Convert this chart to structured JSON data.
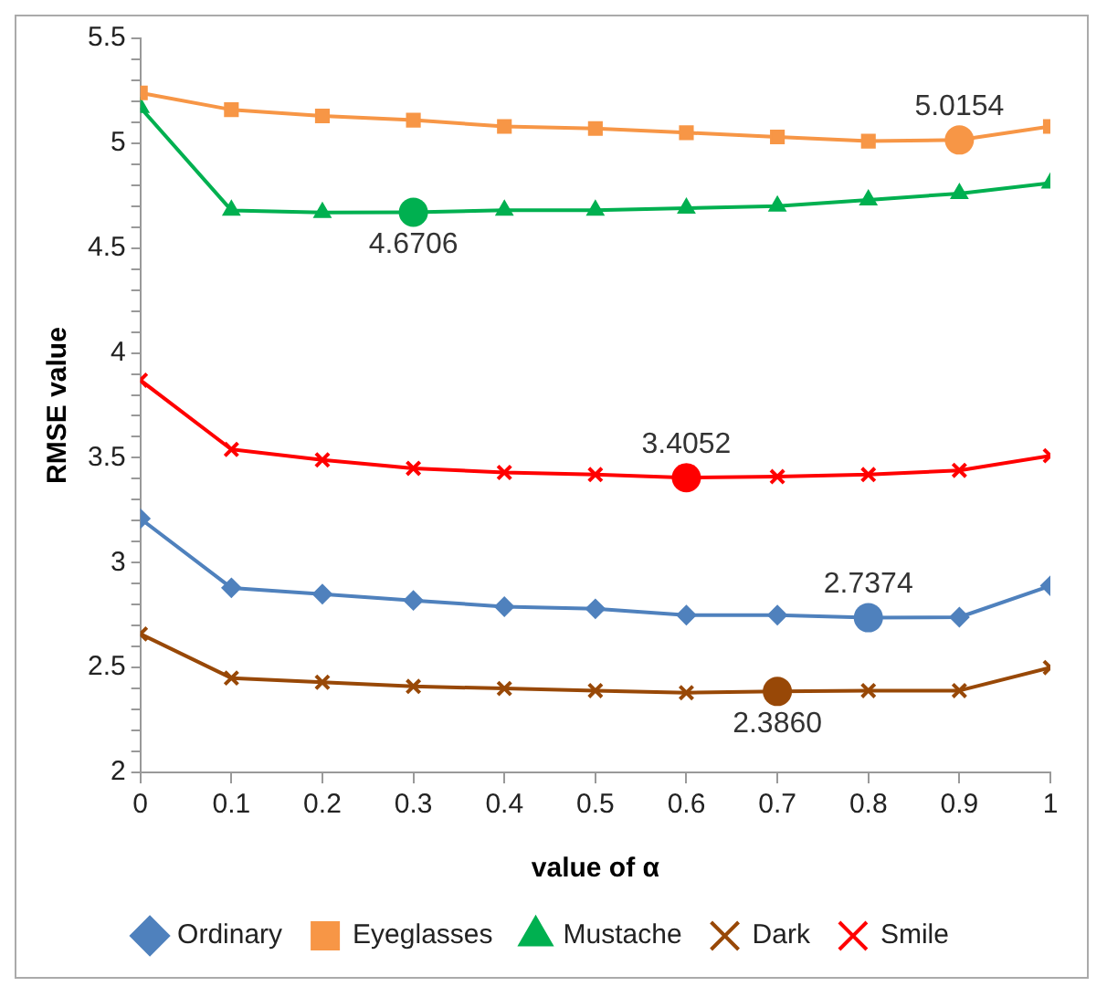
{
  "chart_data": {
    "type": "line",
    "xlabel": "value of α",
    "ylabel": "RMSE value",
    "x": [
      0,
      0.1,
      0.2,
      0.3,
      0.4,
      0.5,
      0.6,
      0.7,
      0.8,
      0.9,
      1
    ],
    "xlim": [
      0,
      1
    ],
    "xticks": [
      0,
      0.1,
      0.2,
      0.3,
      0.4,
      0.5,
      0.6,
      0.7,
      0.8,
      0.9,
      1
    ],
    "ylim": [
      2,
      5.5
    ],
    "yticks": [
      2,
      {
        "value": 2.1,
        "label": null
      },
      {
        "value": 2.2,
        "label": null
      },
      {
        "value": 2.3,
        "label": null
      },
      {
        "value": 2.4,
        "label": null
      },
      2.5,
      {
        "value": 2.6,
        "label": null
      },
      {
        "value": 2.7,
        "label": null
      },
      {
        "value": 2.8,
        "label": null
      },
      {
        "value": 2.9,
        "label": null
      },
      3,
      {
        "value": 3.1,
        "label": null
      },
      {
        "value": 3.2,
        "label": null
      },
      {
        "value": 3.3,
        "label": null
      },
      {
        "value": 3.4,
        "label": null
      },
      3.5,
      {
        "value": 3.6,
        "label": null
      },
      {
        "value": 3.7,
        "label": null
      },
      {
        "value": 3.8,
        "label": null
      },
      {
        "value": 3.9,
        "label": null
      },
      4,
      {
        "value": 4.1,
        "label": null
      },
      {
        "value": 4.2,
        "label": null
      },
      {
        "value": 4.3,
        "label": null
      },
      {
        "value": 4.4,
        "label": null
      },
      4.5,
      {
        "value": 4.6,
        "label": null
      },
      {
        "value": 4.7,
        "label": null
      },
      {
        "value": 4.8,
        "label": null
      },
      {
        "value": 4.9,
        "label": null
      },
      5,
      {
        "value": 5.1,
        "label": null
      },
      {
        "value": 5.2,
        "label": null
      },
      {
        "value": 5.3,
        "label": null
      },
      {
        "value": 5.4,
        "label": null
      },
      5.5
    ],
    "grid": false,
    "legend": "bottom",
    "line_style": "solid",
    "series": [
      {
        "name": "Ordinary",
        "color": "#4f81bd",
        "marker": "diamond",
        "values": [
          3.21,
          2.88,
          2.85,
          2.82,
          2.79,
          2.78,
          2.75,
          2.75,
          2.7374,
          2.74,
          2.89
        ]
      },
      {
        "name": "Eyeglasses",
        "color": "#f79646",
        "marker": "square",
        "values": [
          5.24,
          5.16,
          5.13,
          5.11,
          5.08,
          5.07,
          5.05,
          5.03,
          5.01,
          5.0154,
          5.08
        ]
      },
      {
        "name": "Mustache",
        "color": "#00b050",
        "marker": "triangle",
        "values": [
          5.17,
          4.68,
          4.67,
          4.6706,
          4.68,
          4.68,
          4.69,
          4.7,
          4.73,
          4.76,
          4.81
        ]
      },
      {
        "name": "Dark",
        "color": "#984807",
        "marker": "cross",
        "values": [
          2.66,
          2.45,
          2.43,
          2.41,
          2.4,
          2.39,
          2.38,
          2.386,
          2.39,
          2.39,
          2.5
        ]
      },
      {
        "name": "Smile",
        "color": "#ff0000",
        "marker": "cross",
        "values": [
          3.87,
          3.54,
          3.49,
          3.45,
          3.43,
          3.42,
          3.4052,
          3.41,
          3.42,
          3.44,
          3.51
        ]
      }
    ],
    "annotations": [
      {
        "text": "5.0154",
        "x": 0.9,
        "y": 5.0154
      },
      {
        "text": "4.6706",
        "x": 0.3,
        "y": 4.6706
      },
      {
        "text": "3.4052",
        "x": 0.6,
        "y": 3.4052
      },
      {
        "text": "2.7374",
        "x": 0.8,
        "y": 2.7374
      },
      {
        "text": "2.3860",
        "x": 0.7,
        "y": 2.386
      }
    ]
  }
}
